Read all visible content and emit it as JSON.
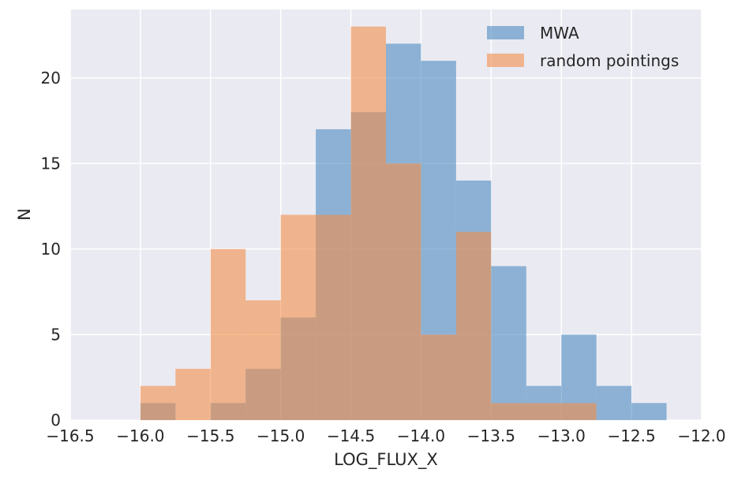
{
  "chart_data": {
    "type": "histogram",
    "xlabel": "LOG_FLUX_X",
    "ylabel": "N",
    "xlim": [
      -16.5,
      -12.0
    ],
    "ylim": [
      0,
      24
    ],
    "xticks": [
      -16.5,
      -16.0,
      -15.5,
      -15.0,
      -14.5,
      -14.0,
      -13.5,
      -13.0,
      -12.5,
      -12.0
    ],
    "xtick_labels": [
      "−16.5",
      "−16.0",
      "−15.5",
      "−15.0",
      "−14.5",
      "−14.0",
      "−13.5",
      "−13.0",
      "−12.5",
      "−12.0"
    ],
    "yticks": [
      0,
      5,
      10,
      15,
      20
    ],
    "ytick_labels": [
      "0",
      "5",
      "10",
      "15",
      "20"
    ],
    "grid": true,
    "legend_position": "top-right",
    "bin_edges": [
      -16.0,
      -15.75,
      -15.5,
      -15.25,
      -15.0,
      -14.75,
      -14.5,
      -14.25,
      -14.0,
      -13.75,
      -13.5,
      -13.25,
      -13.0,
      -12.75,
      -12.5,
      -12.25
    ],
    "series": [
      {
        "name": "MWA",
        "color": "#4c8bc0",
        "opacity": 0.6,
        "values": [
          1,
          0,
          1,
          3,
          6,
          17,
          18,
          22,
          21,
          14,
          9,
          2,
          5,
          2,
          1
        ]
      },
      {
        "name": "random pointings",
        "color": "#f28e4a",
        "opacity": 0.6,
        "values": [
          2,
          3,
          10,
          7,
          12,
          12,
          23,
          15,
          5,
          11,
          1,
          1,
          1,
          0,
          0
        ]
      }
    ]
  },
  "colors": {
    "plot_background": "#eaeaf2",
    "grid": "#ffffff",
    "text": "#262626"
  }
}
